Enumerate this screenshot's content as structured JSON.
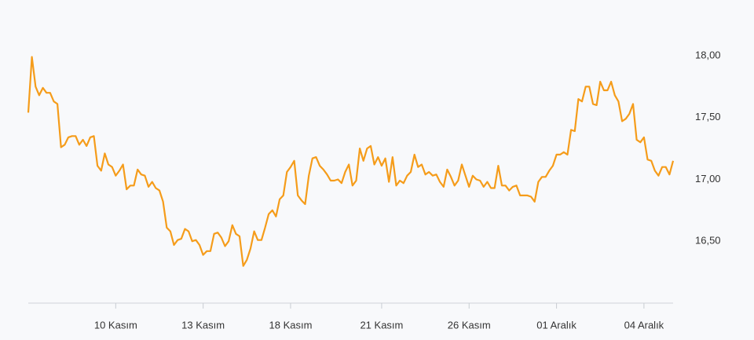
{
  "chart_data": {
    "type": "line",
    "categories": [
      null,
      null,
      null,
      null,
      null,
      null,
      null,
      null,
      null,
      null,
      null,
      null,
      null,
      null,
      null,
      null,
      null,
      null,
      null,
      null,
      null,
      null,
      null,
      null,
      "10 Kasım",
      null,
      null,
      null,
      null,
      null,
      null,
      null,
      null,
      null,
      null,
      null,
      null,
      null,
      null,
      null,
      null,
      null,
      null,
      null,
      null,
      null,
      null,
      null,
      "13 Kasım",
      null,
      null,
      null,
      null,
      null,
      null,
      null,
      null,
      null,
      null,
      null,
      null,
      null,
      null,
      null,
      null,
      null,
      null,
      null,
      null,
      null,
      null,
      null,
      "18 Kasım",
      null,
      null,
      null,
      null,
      null,
      null,
      null,
      null,
      null,
      null,
      null,
      null,
      null,
      null,
      null,
      null,
      null,
      null,
      null,
      null,
      null,
      null,
      null,
      null,
      "21 Kasım",
      null,
      null,
      null,
      null,
      null,
      null,
      null,
      null,
      null,
      null,
      null,
      null,
      null,
      null,
      null,
      null,
      null,
      null,
      null,
      null,
      null,
      null,
      null,
      "26 Kasım",
      null,
      null,
      null,
      null,
      null,
      null,
      null,
      null,
      null,
      null,
      null,
      null,
      null,
      null,
      null,
      null,
      null,
      null,
      null,
      null,
      null,
      null,
      null,
      "01 Aralık",
      null,
      null,
      null,
      null,
      null,
      null,
      null,
      null,
      null,
      null,
      null,
      null,
      null,
      null,
      null,
      null,
      null,
      null,
      null,
      null,
      null,
      null,
      null,
      "04 Aralık",
      null,
      null,
      null,
      null,
      null,
      null,
      null,
      null
    ],
    "series": [
      {
        "color": "#f59c1a",
        "values": [
          17.54,
          17.99,
          17.75,
          17.68,
          17.74,
          17.7,
          17.7,
          17.63,
          17.61,
          17.26,
          17.28,
          17.34,
          17.35,
          17.35,
          17.28,
          17.32,
          17.27,
          17.34,
          17.35,
          17.11,
          17.07,
          17.21,
          17.12,
          17.1,
          17.03,
          17.07,
          17.12,
          16.92,
          16.95,
          16.95,
          17.08,
          17.04,
          17.03,
          16.94,
          16.98,
          16.93,
          16.91,
          16.82,
          16.61,
          16.58,
          16.47,
          16.51,
          16.52,
          16.6,
          16.58,
          16.5,
          16.51,
          16.47,
          16.39,
          16.42,
          16.42,
          16.56,
          16.57,
          16.53,
          16.46,
          16.5,
          16.63,
          16.56,
          16.54,
          16.3,
          16.35,
          16.44,
          16.58,
          16.51,
          16.51,
          16.61,
          16.72,
          16.75,
          16.7,
          16.84,
          16.87,
          17.06,
          17.1,
          17.15,
          16.87,
          16.83,
          16.8,
          17.03,
          17.17,
          17.18,
          17.11,
          17.08,
          17.04,
          16.99,
          16.99,
          17.0,
          16.97,
          17.06,
          17.12,
          16.95,
          16.99,
          17.25,
          17.15,
          17.25,
          17.27,
          17.12,
          17.18,
          17.11,
          17.17,
          16.98,
          17.18,
          16.95,
          16.99,
          16.97,
          17.03,
          17.06,
          17.2,
          17.1,
          17.12,
          17.04,
          17.06,
          17.03,
          17.04,
          16.98,
          16.94,
          17.08,
          17.02,
          16.95,
          16.99,
          17.12,
          17.03,
          16.94,
          17.03,
          17.0,
          16.99,
          16.94,
          16.98,
          16.93,
          16.93,
          17.11,
          16.95,
          16.95,
          16.91,
          16.94,
          16.95,
          16.87,
          16.87,
          16.87,
          16.86,
          16.82,
          16.98,
          17.02,
          17.02,
          17.07,
          17.11,
          17.2,
          17.2,
          17.22,
          17.2,
          17.4,
          17.39,
          17.65,
          17.63,
          17.75,
          17.75,
          17.61,
          17.6,
          17.79,
          17.72,
          17.72,
          17.79,
          17.68,
          17.63,
          17.47,
          17.49,
          17.53,
          17.61,
          17.32,
          17.3,
          17.34,
          17.16,
          17.15,
          17.07,
          17.03,
          17.1,
          17.1,
          17.04,
          17.15
        ]
      }
    ],
    "ylim": [
      16.0,
      18.2
    ],
    "yticks": [
      {
        "value": 18,
        "label": "18,00"
      },
      {
        "value": 17.5,
        "label": "17,50"
      },
      {
        "value": 17,
        "label": "17,00"
      },
      {
        "value": 16.5,
        "label": "16,50"
      }
    ]
  }
}
